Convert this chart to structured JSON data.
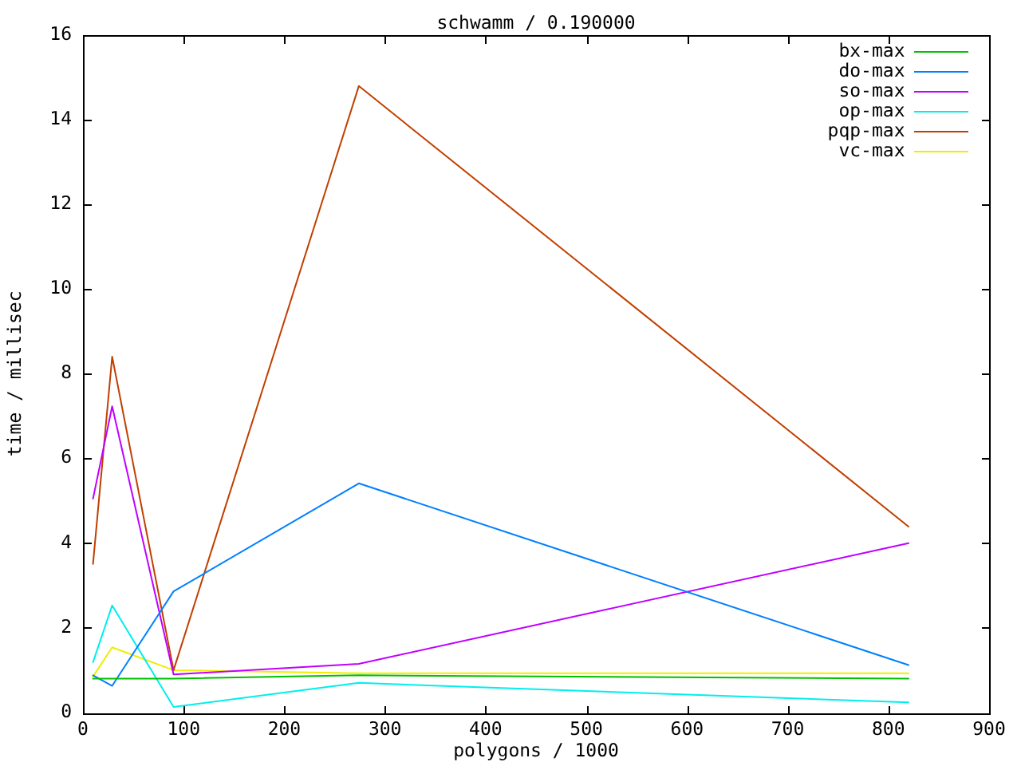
{
  "chart_data": {
    "type": "line",
    "title": "schwamm / 0.190000",
    "xlabel": "polygons / 1000",
    "ylabel": "time / millisec",
    "x": [
      10,
      29,
      90,
      274,
      820
    ],
    "series": [
      {
        "name": "bx-max",
        "color": "#00c000",
        "values": [
          0.8,
          0.8,
          0.8,
          0.88,
          0.8
        ]
      },
      {
        "name": "do-max",
        "color": "#0080ff",
        "values": [
          0.88,
          0.63,
          2.86,
          5.41,
          1.12
        ]
      },
      {
        "name": "so-max",
        "color": "#c000ff",
        "values": [
          5.05,
          7.23,
          0.9,
          1.15,
          4.0
        ]
      },
      {
        "name": "op-max",
        "color": "#00eeee",
        "values": [
          1.19,
          2.53,
          0.13,
          0.7,
          0.24
        ]
      },
      {
        "name": "pqp-max",
        "color": "#c04000",
        "values": [
          3.51,
          8.4,
          1.0,
          14.79,
          4.39
        ]
      },
      {
        "name": "vc-max",
        "color": "#eeee00",
        "values": [
          0.85,
          1.54,
          1.0,
          0.93,
          0.93
        ]
      }
    ],
    "xlim": [
      0,
      900
    ],
    "xticks": [
      0,
      100,
      200,
      300,
      400,
      500,
      600,
      700,
      800,
      900
    ],
    "ylim": [
      0,
      16
    ],
    "yticks": [
      0,
      2,
      4,
      6,
      8,
      10,
      12,
      14,
      16
    ],
    "legend": "top right",
    "marker": "none",
    "line_style": "solid"
  }
}
